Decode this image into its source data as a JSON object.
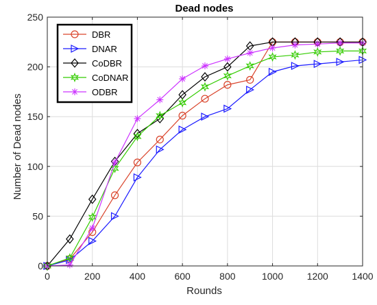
{
  "chart_data": {
    "type": "line",
    "title": "Dead nodes",
    "xlabel": "Rounds",
    "ylabel": "Number of Dead nodes",
    "xlim": [
      0,
      1400
    ],
    "ylim": [
      0,
      250
    ],
    "xticks": [
      0,
      200,
      400,
      600,
      800,
      1000,
      1200,
      1400
    ],
    "yticks": [
      0,
      50,
      100,
      150,
      200,
      250
    ],
    "grid": true,
    "legend_position": "top-left",
    "x": [
      0,
      100,
      200,
      300,
      400,
      500,
      600,
      700,
      800,
      900,
      1000,
      1100,
      1200,
      1300,
      1400
    ],
    "series": [
      {
        "name": "DBR",
        "color": "#d9432a",
        "marker": "circle",
        "values": [
          0,
          7,
          34,
          71,
          104,
          127,
          151,
          168,
          182,
          187,
          225,
          225,
          225,
          225,
          225
        ]
      },
      {
        "name": "DNAR",
        "color": "#1a1aff",
        "marker": "triangle-right",
        "values": [
          0,
          6,
          25,
          50,
          89,
          117,
          137,
          150,
          158,
          177,
          195,
          201,
          203,
          205,
          207
        ]
      },
      {
        "name": "CoDBR",
        "color": "#000000",
        "marker": "diamond",
        "values": [
          0,
          27,
          67,
          105,
          133,
          148,
          172,
          190,
          200,
          221,
          225,
          225,
          225,
          225,
          225
        ]
      },
      {
        "name": "CoDNAR",
        "color": "#33cc00",
        "marker": "hexagram",
        "values": [
          0,
          8,
          49,
          98,
          130,
          151,
          164,
          180,
          191,
          201,
          210,
          212,
          215,
          216,
          216
        ]
      },
      {
        "name": "ODBR",
        "color": "#cc33ff",
        "marker": "asterisk",
        "values": [
          0,
          1,
          38,
          104,
          148,
          167,
          188,
          201,
          208,
          214,
          219,
          222,
          223,
          224,
          224
        ]
      }
    ]
  }
}
